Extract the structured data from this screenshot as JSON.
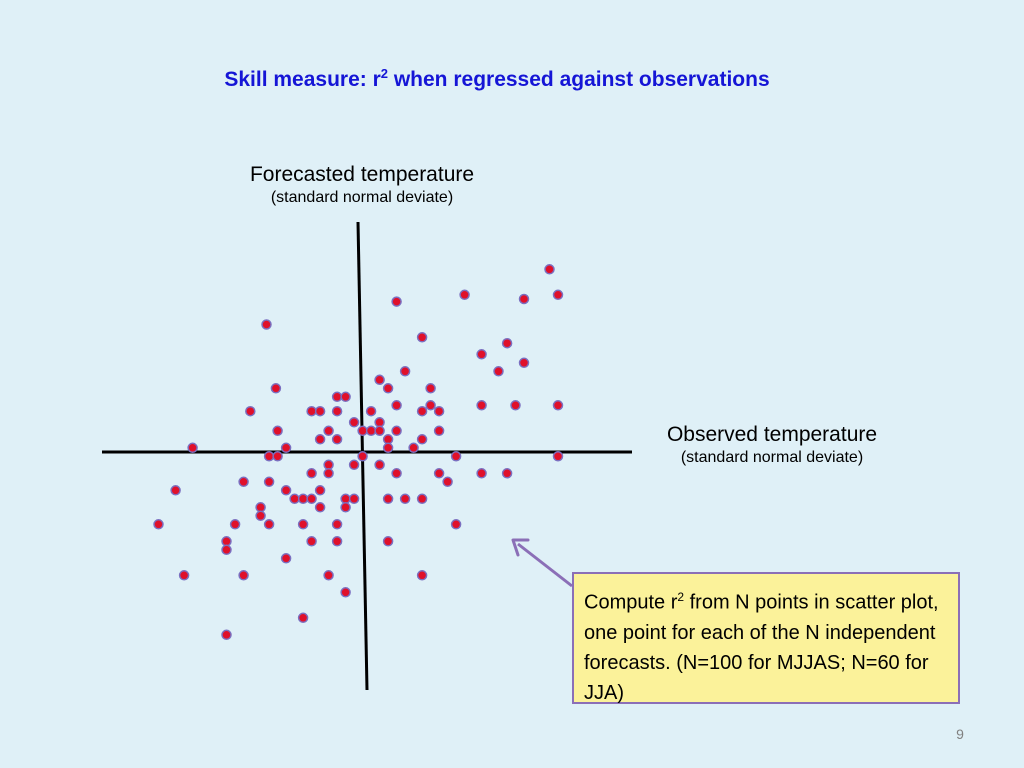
{
  "title": {
    "prefix": "Skill measure: r",
    "superscript": "2",
    "suffix": " when regressed against observations"
  },
  "callout": {
    "prefix": "Compute r",
    "superscript": "2",
    "suffix": " from N points in scatter plot, one point for each of the N independent forecasts. (N=100 for MJJAS; N=60 for JJA)"
  },
  "slide_number": "9",
  "colors": {
    "background": "#dff0f7",
    "title": "#1515d6",
    "point_fill": "#e0102a",
    "point_stroke": "#7b6fc0",
    "callout_fill": "#fbf29a",
    "callout_border": "#8b6fb7",
    "arrow": "#8b6fb7"
  },
  "chart_data": {
    "type": "scatter",
    "xlabel": "Observed temperature",
    "xlabel_sub": "(standard normal deviate)",
    "ylabel": "Forecasted temperature",
    "ylabel_sub": "(standard normal deviate)",
    "xlim": [
      -3.0,
      3.2
    ],
    "ylim": [
      -2.8,
      2.8
    ],
    "grid": false,
    "points": [
      [
        2.23,
        2.15
      ],
      [
        1.23,
        1.85
      ],
      [
        -1.1,
        1.5
      ],
      [
        2.33,
        1.85
      ],
      [
        1.93,
        1.8
      ],
      [
        0.43,
        1.77
      ],
      [
        0.73,
        1.35
      ],
      [
        1.73,
        1.28
      ],
      [
        1.43,
        1.15
      ],
      [
        1.93,
        1.05
      ],
      [
        1.63,
        0.95
      ],
      [
        0.53,
        0.95
      ],
      [
        0.23,
        0.85
      ],
      [
        0.33,
        0.75
      ],
      [
        0.83,
        0.75
      ],
      [
        -0.99,
        0.75
      ],
      [
        -0.27,
        0.65
      ],
      [
        -0.17,
        0.65
      ],
      [
        0.83,
        0.55
      ],
      [
        0.43,
        0.55
      ],
      [
        -1.29,
        0.48
      ],
      [
        -0.57,
        0.48
      ],
      [
        -0.47,
        0.48
      ],
      [
        -0.27,
        0.48
      ],
      [
        0.13,
        0.48
      ],
      [
        0.73,
        0.48
      ],
      [
        0.93,
        0.48
      ],
      [
        1.43,
        0.55
      ],
      [
        1.83,
        0.55
      ],
      [
        2.33,
        0.55
      ],
      [
        -0.07,
        0.35
      ],
      [
        0.23,
        0.35
      ],
      [
        -0.97,
        0.25
      ],
      [
        -0.37,
        0.25
      ],
      [
        0.03,
        0.25
      ],
      [
        0.13,
        0.25
      ],
      [
        0.23,
        0.25
      ],
      [
        0.43,
        0.25
      ],
      [
        0.93,
        0.25
      ],
      [
        -0.47,
        0.15
      ],
      [
        -0.27,
        0.15
      ],
      [
        0.33,
        0.15
      ],
      [
        0.73,
        0.15
      ],
      [
        -1.97,
        0.05
      ],
      [
        -0.87,
        0.05
      ],
      [
        0.33,
        0.05
      ],
      [
        0.63,
        0.05
      ],
      [
        -1.07,
        -0.05
      ],
      [
        -0.97,
        -0.05
      ],
      [
        0.03,
        -0.05
      ],
      [
        1.13,
        -0.05
      ],
      [
        2.33,
        -0.05
      ],
      [
        -0.37,
        -0.15
      ],
      [
        -0.07,
        -0.15
      ],
      [
        0.23,
        -0.15
      ],
      [
        -0.37,
        -0.25
      ],
      [
        -0.57,
        -0.25
      ],
      [
        0.43,
        -0.25
      ],
      [
        0.93,
        -0.25
      ],
      [
        1.43,
        -0.25
      ],
      [
        1.73,
        -0.25
      ],
      [
        -1.37,
        -0.35
      ],
      [
        -1.07,
        -0.35
      ],
      [
        1.03,
        -0.35
      ],
      [
        -2.17,
        -0.45
      ],
      [
        -0.87,
        -0.45
      ],
      [
        -0.47,
        -0.45
      ],
      [
        -0.77,
        -0.55
      ],
      [
        -0.67,
        -0.55
      ],
      [
        -0.57,
        -0.55
      ],
      [
        -0.17,
        -0.55
      ],
      [
        -0.07,
        -0.55
      ],
      [
        0.33,
        -0.55
      ],
      [
        0.53,
        -0.55
      ],
      [
        0.73,
        -0.55
      ],
      [
        -1.17,
        -0.65
      ],
      [
        -0.47,
        -0.65
      ],
      [
        -0.17,
        -0.65
      ],
      [
        -1.17,
        -0.75
      ],
      [
        -2.37,
        -0.85
      ],
      [
        -1.47,
        -0.85
      ],
      [
        -1.07,
        -0.85
      ],
      [
        -0.67,
        -0.85
      ],
      [
        -0.27,
        -0.85
      ],
      [
        1.13,
        -0.85
      ],
      [
        -1.57,
        -1.05
      ],
      [
        -0.57,
        -1.05
      ],
      [
        -0.27,
        -1.05
      ],
      [
        0.33,
        -1.05
      ],
      [
        -1.57,
        -1.15
      ],
      [
        -0.87,
        -1.25
      ],
      [
        -2.07,
        -1.45
      ],
      [
        -1.37,
        -1.45
      ],
      [
        -0.37,
        -1.45
      ],
      [
        0.73,
        -1.45
      ],
      [
        -0.17,
        -1.65
      ],
      [
        -0.67,
        -1.95
      ],
      [
        -1.57,
        -2.15
      ]
    ]
  }
}
